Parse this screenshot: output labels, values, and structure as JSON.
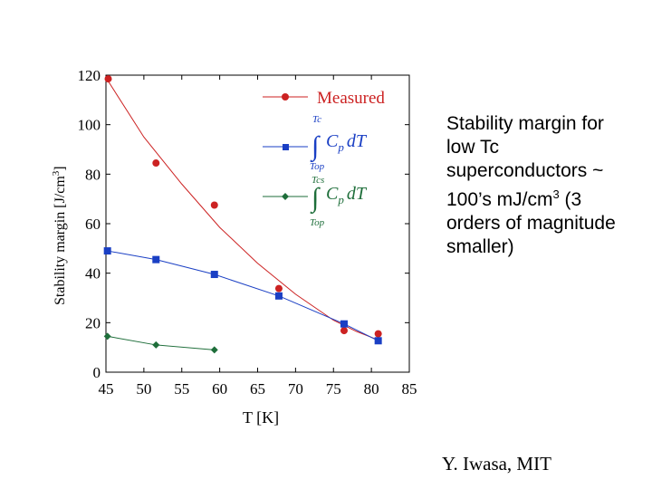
{
  "chart_data": {
    "type": "line",
    "xlabel": "T [K]",
    "ylabel": "Stability margin [J/cm3]",
    "xlim": [
      45,
      85
    ],
    "ylim": [
      0,
      120
    ],
    "xticks": [
      45,
      50,
      55,
      60,
      65,
      70,
      75,
      80,
      85
    ],
    "yticks": [
      0,
      20,
      40,
      60,
      80,
      100,
      120
    ],
    "legend_position": "top-right",
    "grid": false,
    "series": [
      {
        "name": "Measured",
        "color": "#cc2222",
        "marker": "circle",
        "x": [
          45.3,
          51.6,
          59.3,
          67.8,
          76.4,
          80.9
        ],
        "y": [
          118.5,
          84.5,
          67.5,
          33.8,
          16.8,
          15.5
        ],
        "fit": {
          "x": [
            45,
            50,
            55,
            60,
            65,
            70,
            75,
            78,
            80.9
          ],
          "y": [
            119,
            95,
            76,
            58.5,
            44,
            31.5,
            21,
            16.5,
            13
          ]
        }
      },
      {
        "name": "∫ Cp dT (Top → Tc)",
        "color": "#1a3fc4",
        "marker": "square",
        "x": [
          45.2,
          51.6,
          59.3,
          67.8,
          76.4,
          80.9
        ],
        "y": [
          49,
          45.5,
          39.5,
          30.8,
          19.5,
          12.7
        ]
      },
      {
        "name": "∫ Cp dT (Top → Tcs)",
        "color": "#1e6e3a",
        "marker": "diamond",
        "x": [
          45.2,
          51.6,
          59.3
        ],
        "y": [
          14.5,
          11,
          9
        ]
      }
    ],
    "legend": {
      "measured_label": "Measured",
      "integral_label": "C",
      "integral_sub": "p",
      "integral_tail": "dT",
      "upper_limit_1": "Tc",
      "lower_limit_1": "Top",
      "upper_limit_2": "Tcs",
      "lower_limit_2": "Top"
    }
  },
  "side_note": {
    "text_before_sup": "Stability margin for low Tc superconductors ~ 100’s mJ/cm",
    "sup": "3",
    "text_after_sup": " (3 orders of magnitude smaller)"
  },
  "credit": "Y. Iwasa, MIT"
}
